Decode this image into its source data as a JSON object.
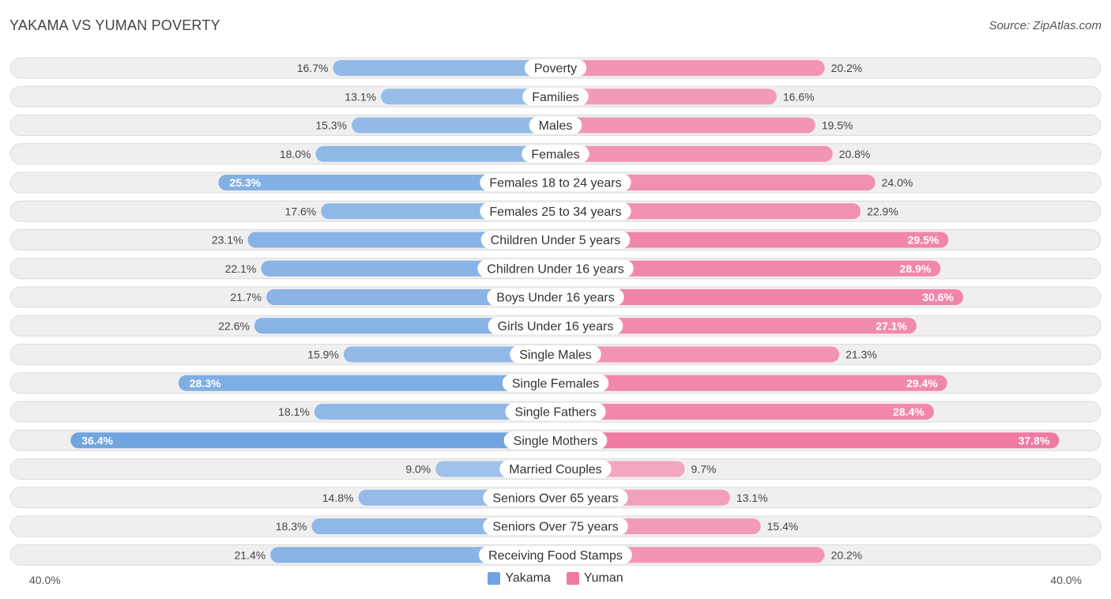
{
  "header": {
    "title": "YAKAMA VS YUMAN POVERTY",
    "source": "Source: ZipAtlas.com"
  },
  "colors": {
    "left": "#6fa4e0",
    "right": "#f07aa0"
  },
  "chart_data": {
    "type": "bar",
    "orientation": "diverging-horizontal",
    "title": "YAKAMA VS YUMAN POVERTY",
    "axis_max": 40.0,
    "axis_labels": {
      "left": "40.0%",
      "right": "40.0%"
    },
    "unit": "%",
    "categories": [
      "Poverty",
      "Families",
      "Males",
      "Females",
      "Females 18 to 24 years",
      "Females 25 to 34 years",
      "Children Under 5 years",
      "Children Under 16 years",
      "Boys Under 16 years",
      "Girls Under 16 years",
      "Single Males",
      "Single Females",
      "Single Fathers",
      "Single Mothers",
      "Married Couples",
      "Seniors Over 65 years",
      "Seniors Over 75 years",
      "Receiving Food Stamps"
    ],
    "series": [
      {
        "name": "Yakama",
        "side": "left",
        "values": [
          16.7,
          13.1,
          15.3,
          18.0,
          25.3,
          17.6,
          23.1,
          22.1,
          21.7,
          22.6,
          15.9,
          28.3,
          18.1,
          36.4,
          9.0,
          14.8,
          18.3,
          21.4
        ],
        "labels": [
          "16.7%",
          "13.1%",
          "15.3%",
          "18.0%",
          "25.3%",
          "17.6%",
          "23.1%",
          "22.1%",
          "21.7%",
          "22.6%",
          "15.9%",
          "28.3%",
          "18.1%",
          "36.4%",
          "9.0%",
          "14.8%",
          "18.3%",
          "21.4%"
        ]
      },
      {
        "name": "Yuman",
        "side": "right",
        "values": [
          20.2,
          16.6,
          19.5,
          20.8,
          24.0,
          22.9,
          29.5,
          28.9,
          30.6,
          27.1,
          21.3,
          29.4,
          28.4,
          37.8,
          9.7,
          13.1,
          15.4,
          20.2
        ],
        "labels": [
          "20.2%",
          "16.6%",
          "19.5%",
          "20.8%",
          "24.0%",
          "22.9%",
          "29.5%",
          "28.9%",
          "30.6%",
          "27.1%",
          "21.3%",
          "29.4%",
          "28.4%",
          "37.8%",
          "9.7%",
          "13.1%",
          "15.4%",
          "20.2%"
        ]
      }
    ],
    "legend": [
      "Yakama",
      "Yuman"
    ]
  }
}
